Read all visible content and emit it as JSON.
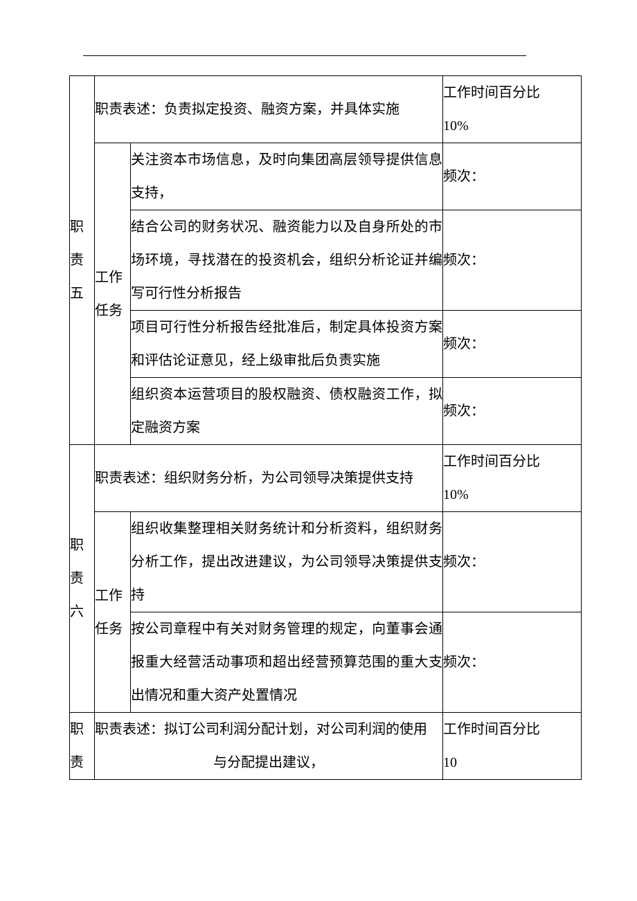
{
  "table": {
    "font_size": 20,
    "line_height": 2.4,
    "border_color": "#000000",
    "background_color": "#ffffff",
    "text_color": "#000000",
    "columns": {
      "label_width": 36,
      "sub_width": 52,
      "right_width": 200
    }
  },
  "resp5": {
    "label": "职责五",
    "desc_prefix": "职责表述：",
    "desc": "负责拟定投资、融资方案，并具体实施",
    "time_label": "工作时间百分比",
    "time_value": "10%",
    "task_label": "工作任务",
    "tasks": [
      {
        "text": "关注资本市场信息，及时向集团高层领导提供信息支持，",
        "freq": "频次："
      },
      {
        "text": "结合公司的财务状况、融资能力以及自身所处的市场环境，寻找潜在的投资机会，组织分析论证并编写可行性分析报告",
        "freq": "频次："
      },
      {
        "text": "项目可行性分析报告经批准后，制定具体投资方案和评估论证意见，经上级审批后负责实施",
        "freq": "频次："
      },
      {
        "text": "组织资本运营项目的股权融资、债权融资工作，拟定融资方案",
        "freq": "频次："
      }
    ]
  },
  "resp6": {
    "label": "职责六",
    "desc_prefix": "职责表述：",
    "desc": "组织财务分析，为公司领导决策提供支持",
    "time_label": "工作时间百分比",
    "time_value": "10%",
    "task_label": "工作任务",
    "tasks": [
      {
        "text": "组织收集整理相关财务统计和分析资料，组织财务分析工作，提出改进建议，为公司领导决策提供支持",
        "freq": "频次："
      },
      {
        "text": "按公司章程中有关对财务管理的规定，向董事会通报重大经营活动事项和超出经营预算范围的重大支出情况和重大资产处置情况",
        "freq": "频次："
      }
    ]
  },
  "resp7": {
    "label": "职责",
    "desc_prefix": "职责表述：",
    "desc_line1": "拟订公司利润分配计划，对公司利润的使用",
    "desc_line2": "与分配提出建议，",
    "time_label": "工作时间百分比",
    "time_value": "10"
  }
}
